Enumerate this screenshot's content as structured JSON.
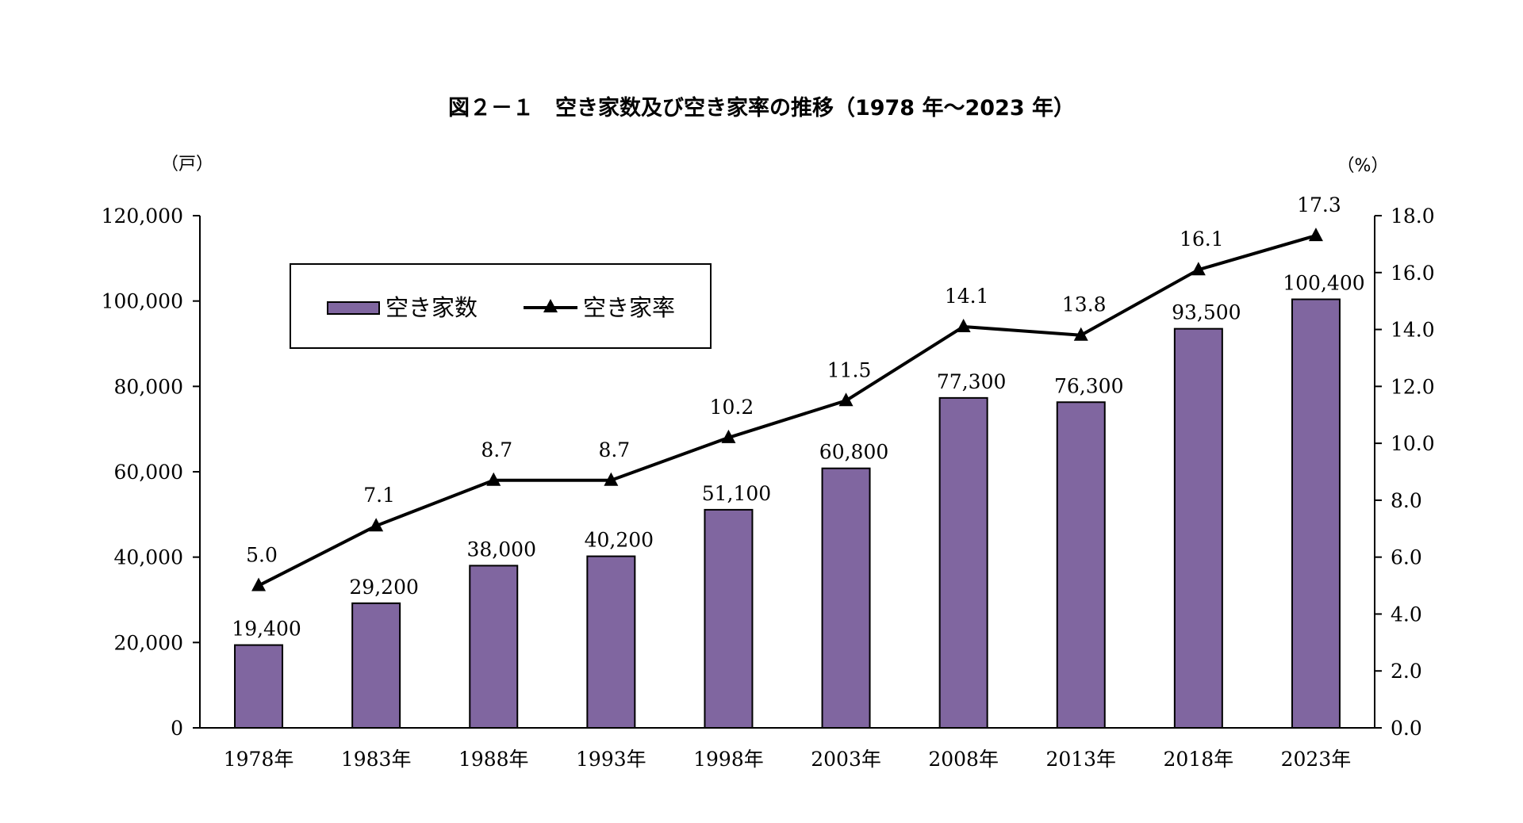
{
  "chart_data": {
    "type": "bar",
    "title": "図２－１　空き家数及び空き家率の推移（1978 年～2023 年）",
    "categories": [
      "1978年",
      "1983年",
      "1988年",
      "1993年",
      "1998年",
      "2003年",
      "2008年",
      "2013年",
      "2018年",
      "2023年"
    ],
    "series": [
      {
        "name": "空き家数",
        "type": "bar",
        "axis": "left",
        "values": [
          194,
          292,
          380,
          402,
          511,
          608,
          773,
          763,
          935,
          1004
        ],
        "labels": [
          "19,400",
          "29,200",
          "38,000",
          "40,200",
          "51,100",
          "60,800",
          "77,300",
          "76,300",
          "93,500",
          "100,400"
        ],
        "color": "#8066a0"
      },
      {
        "name": "空き家率",
        "type": "line",
        "axis": "right",
        "marker": "triangle",
        "values": [
          5.0,
          7.1,
          8.7,
          8.7,
          10.2,
          11.5,
          14.1,
          13.8,
          16.1,
          17.3
        ],
        "labels": [
          "5.0",
          "7.1",
          "8.7",
          "8.7",
          "10.2",
          "11.5",
          "14.1",
          "13.8",
          "16.1",
          "17.3"
        ],
        "color": "#000000"
      }
    ],
    "left_axis": {
      "unit_label": "（戸）",
      "ylim": [
        0,
        1200
      ],
      "ticks": [
        0,
        200,
        400,
        600,
        800,
        1000,
        1200
      ],
      "tick_labels": [
        "0",
        "20,000",
        "40,000",
        "60,000",
        "80,000",
        "100,000",
        "120,000"
      ]
    },
    "right_axis": {
      "unit_label": "（%）",
      "ylim": [
        0,
        18
      ],
      "ticks": [
        0,
        2,
        4,
        6,
        8,
        10,
        12,
        14,
        16,
        18
      ],
      "tick_labels": [
        "0.0",
        "2.0",
        "4.0",
        "6.0",
        "8.0",
        "10.0",
        "12.0",
        "14.0",
        "16.0",
        "18.0"
      ]
    },
    "legend": {
      "position": "top-left",
      "entries": [
        "空き家数",
        "空き家率"
      ]
    },
    "grid": false
  }
}
